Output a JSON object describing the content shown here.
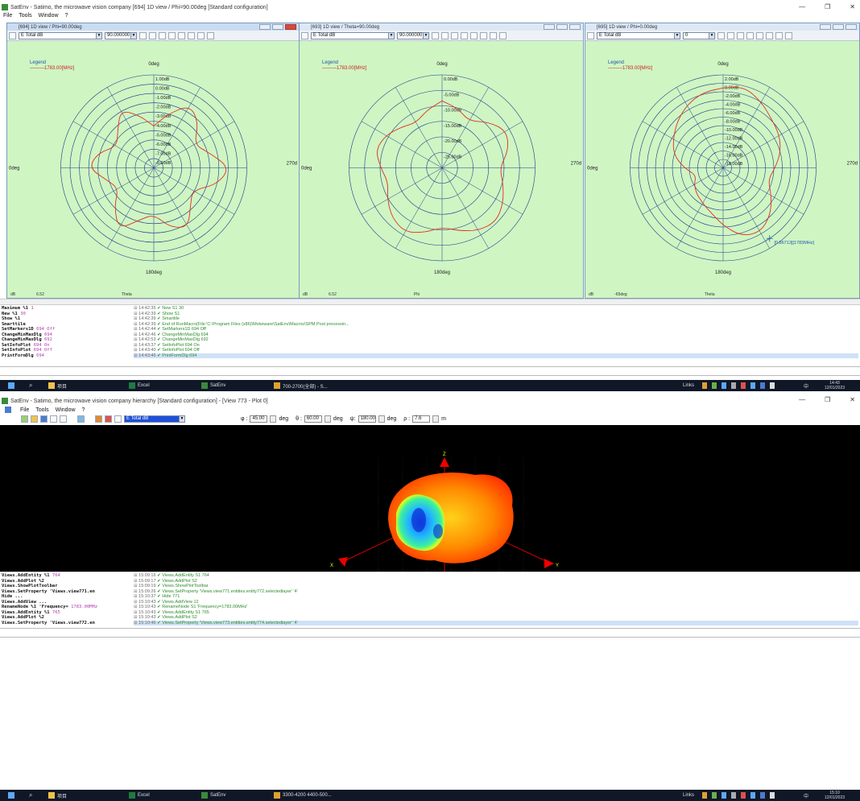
{
  "top_window": {
    "title": "SatEnv - Satimo, the microwave vision company [694] 1D view / Phi=90.00deg [Standard configuration]",
    "menu": [
      "File",
      "Tools",
      "Window",
      "?"
    ],
    "panes": [
      {
        "title": "[694] 1D view / Phi=90.00deg",
        "quantity": "E Total dB",
        "angle": "90.000000",
        "legend_title": "Legend",
        "legend_entry": "1783.00[MHz]",
        "top_label": "0deg",
        "left_label": "0deg",
        "right_label": "270d",
        "bottom_label": "180deg",
        "ring_labels": [
          "1.00dB",
          "0.00dB",
          "-1.00dB",
          "-2.00dB",
          "-3.00dB",
          "-4.00dB",
          "-5.00dB",
          "-6.00dB",
          "-7.00dB",
          "-8.00dB"
        ],
        "foot": [
          "dB",
          "6.52",
          "Theta"
        ],
        "curve_radii": [
          0.45,
          0.6,
          0.78,
          0.68,
          0.5,
          0.62,
          0.82,
          0.7,
          0.48,
          0.56,
          0.74,
          0.66,
          0.5,
          0.58,
          0.76,
          0.6,
          0.44,
          0.52,
          0.7,
          0.62,
          0.46,
          0.55,
          0.72,
          0.58
        ],
        "active": true
      },
      {
        "title": "[693] 1D view / Theta=90.00deg",
        "quantity": "E Total dB",
        "angle": "90.000000",
        "legend_title": "Legend",
        "legend_entry": "1783.00[MHz]",
        "top_label": "0deg",
        "left_label": "0deg",
        "right_label": "270d",
        "bottom_label": "180deg",
        "ring_labels": [
          "0.00dB",
          "-5.00dB",
          "-10.00dB",
          "-15.00dB",
          "-20.00dB",
          "-25.00dB"
        ],
        "foot": [
          "dB",
          "6.52",
          "Phi"
        ],
        "curve_radii": [
          0.72,
          0.66,
          0.58,
          0.7,
          0.8,
          0.74,
          0.62,
          0.68,
          0.76,
          0.82,
          0.78,
          0.7,
          0.64,
          0.72,
          0.8,
          0.76,
          0.68,
          0.6,
          0.66,
          0.74,
          0.7,
          0.62,
          0.56,
          0.64
        ],
        "active": false
      },
      {
        "title": "[695] 1D view / Phi=0.00deg",
        "quantity": "E Total dB",
        "angle": "0",
        "legend_title": "Legend",
        "legend_entry": "1783.00[MHz]",
        "top_label": "0deg",
        "left_label": "0deg",
        "right_label": "270d",
        "bottom_label": "180deg",
        "ring_labels": [
          "2.00dB",
          "0.00dB",
          "-2.00dB",
          "-4.00dB",
          "-6.00dB",
          "-8.00dB",
          "-10.00dB",
          "-12.00dB",
          "-14.00dB",
          "-16.00dB",
          "-18.00dB"
        ],
        "foot": [
          "dB",
          "-65deg",
          "Theta"
        ],
        "marker_label": "[0.86713][1783MHz]",
        "curve_radii": [
          0.86,
          0.9,
          0.82,
          0.74,
          0.7,
          0.64,
          0.56,
          0.5,
          0.6,
          0.72,
          0.8,
          0.76,
          0.62,
          0.5,
          0.44,
          0.4,
          0.36,
          0.3,
          0.42,
          0.55,
          0.62,
          0.7,
          0.78,
          0.84
        ],
        "active": false
      }
    ],
    "console_left": [
      {
        "cmd": "Maximum %1",
        "arg": "1"
      },
      {
        "cmd": "New %1",
        "arg": "30"
      },
      {
        "cmd": "Show %1",
        "arg": ""
      },
      {
        "cmd": "Smarttile",
        "arg": ""
      },
      {
        "cmd": "SetMarkers1D",
        "arg": "694 Off"
      },
      {
        "cmd": "ChangeMinMaxDlg",
        "arg": "694"
      },
      {
        "cmd": "ChangeMinMaxDlg",
        "arg": "692"
      },
      {
        "cmd": "SetInfoPlot",
        "arg": "694 On"
      },
      {
        "cmd": "SetInfoPlot",
        "arg": "694 Off"
      },
      {
        "cmd": "PrintFormDlg",
        "arg": "694"
      }
    ],
    "console_right": [
      {
        "ts": "14:42:35",
        "text": "New S1 30"
      },
      {
        "ts": "14:42:39",
        "text": "Show S1"
      },
      {
        "ts": "14:42:39",
        "text": "Smarttile"
      },
      {
        "ts": "14:42:39",
        "text": "End of RunMacro(File:'C:\\Program Files (x86)\\Mvkeware\\SatEnv\\Macros\\SPM Post processin..."
      },
      {
        "ts": "14:42:44",
        "text": "SetMarkers1D 694 Off"
      },
      {
        "ts": "14:42:46",
        "text": "ChangeMinMaxDlg 694"
      },
      {
        "ts": "14:42:53",
        "text": "ChangeMinMaxDlg 692"
      },
      {
        "ts": "14:43:37",
        "text": "SetInfoPlot 694 On"
      },
      {
        "ts": "14:43:40",
        "text": "SetInfoPlot 694 Off"
      },
      {
        "ts": "14:43:46",
        "text": "PrintFormDlg 694",
        "selected": true
      }
    ]
  },
  "taskbar1": {
    "items": [
      "项目",
      "Excel",
      "SatEnv",
      "700-2700(全部) - S..."
    ],
    "tray_text": "Links",
    "lang": "中",
    "time": "14:43",
    "date": "12/01/2023"
  },
  "bottom_window": {
    "title": "SatEnv - Satimo, the microwave vision company hierarchy [Standard configuration] - [View 773 - Plot 0]",
    "menu": [
      "File",
      "Tools",
      "Window",
      "?"
    ],
    "quantity": "E Total dB",
    "phi_label": "φ :",
    "phi_value": "45.00",
    "theta_label": "θ :",
    "theta_value": "60.00",
    "psi_label": "ψ:",
    "psi_value": "180.00",
    "rho_label": "ρ :",
    "rho_value": "7.6",
    "deg_unit": "deg",
    "m_unit": "m",
    "axis_labels": [
      "Z",
      "X",
      "Y"
    ],
    "console_left": [
      {
        "cmd": "Views.AddEntity %1",
        "arg": "764"
      },
      {
        "cmd": "Views.AddPlot %2",
        "arg": ""
      },
      {
        "cmd": "Views.ShowPlotToolbar",
        "arg": ""
      },
      {
        "cmd": "Views.SetProperty 'Views.view771.en",
        "arg": ""
      },
      {
        "cmd": "Hide ...",
        "arg": ""
      },
      {
        "cmd": "Views.AddView ...",
        "arg": ""
      },
      {
        "cmd": "RenameNode %1 'Frequency=",
        "arg": "1783.00MHz"
      },
      {
        "cmd": "Views.AddEntity %1",
        "arg": "765"
      },
      {
        "cmd": "Views.AddPlot %2",
        "arg": ""
      },
      {
        "cmd": "Views.SetProperty 'Views.view772.en",
        "arg": ""
      }
    ],
    "console_right": [
      {
        "ts": "15:09:16",
        "text": "Views.AddEntity S1 764"
      },
      {
        "ts": "15:09:17",
        "text": "Views.AddPlot S2"
      },
      {
        "ts": "15:09:19",
        "text": "Views.ShowPlotToolbar"
      },
      {
        "ts": "15:09:26",
        "text": "Views.SetProperty 'Views.view771.entities.entity772.selectedlayer' '4'"
      },
      {
        "ts": "15:10:37",
        "text": "Hide 771"
      },
      {
        "ts": "15:10:43",
        "text": "Views.AddView 12"
      },
      {
        "ts": "15:10:43",
        "text": "RenameNode S1 'Frequency=1783.00MHz'"
      },
      {
        "ts": "15:10:43",
        "text": "Views.AddEntity S1 765"
      },
      {
        "ts": "15:10:43",
        "text": "Views.AddPlot S2"
      },
      {
        "ts": "15:10:46",
        "text": "Views.SetProperty 'Views.view773.entities.entity774.selectedlayer' '4'",
        "selected": true
      }
    ]
  },
  "taskbar2": {
    "items": [
      "项目",
      "Excel",
      "SatEnv",
      "3300-4200 4400-500..."
    ],
    "tray_text": "Links",
    "lang": "中",
    "time": "15:10",
    "date": "12/01/2023"
  },
  "colors": {
    "plot_bg": "#cff5c3",
    "grid": "#1a3a8a",
    "curve": "#e0301e",
    "log_green": "#2e8b2e",
    "taskbar": "#101828"
  }
}
